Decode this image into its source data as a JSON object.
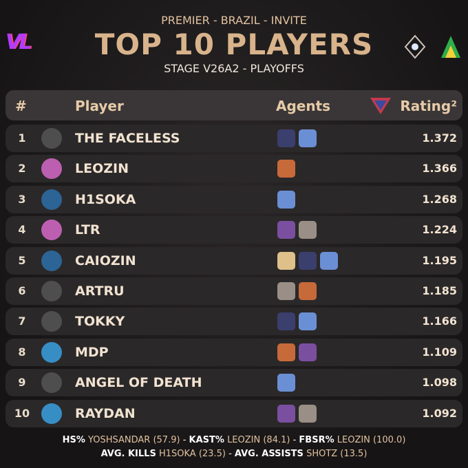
{
  "header": {
    "logo": "VL",
    "subtitle": "PREMIER - BRAZIL - INVITE",
    "title": "TOP 10 PLAYERS",
    "stage": "STAGE V26A2 - PLAYOFFS"
  },
  "table": {
    "columns": [
      "#",
      "Player",
      "Agents",
      "Rating²"
    ],
    "rows": [
      {
        "rank": 1,
        "player": "THE FACELESS",
        "rating": 1.372
      },
      {
        "rank": 2,
        "player": "LEOZIN",
        "rating": 1.366
      },
      {
        "rank": 3,
        "player": "H1SOKA",
        "rating": 1.268
      },
      {
        "rank": 4,
        "player": "LTR",
        "rating": 1.224
      },
      {
        "rank": 5,
        "player": "CAIOZIN",
        "rating": 1.195
      },
      {
        "rank": 6,
        "player": "ARTRU",
        "rating": 1.185
      },
      {
        "rank": 7,
        "player": "TOKKY",
        "rating": 1.166
      },
      {
        "rank": 8,
        "player": "MDP",
        "rating": 1.109
      },
      {
        "rank": 9,
        "player": "ANGEL OF DEATH",
        "rating": 1.098
      },
      {
        "rank": 10,
        "player": "RAYDAN",
        "rating": 1.092
      }
    ]
  },
  "footer": {
    "separator": "-",
    "lines": [
      [
        {
          "label": "HS%",
          "value": "YOSHSANDAR (57.9)"
        },
        {
          "label": "KAST%",
          "value": "LEOZIN (84.1)"
        },
        {
          "label": "FBSR%",
          "value": "LEOZIN (100.0)"
        }
      ],
      [
        {
          "label": "AVG. KILLS",
          "value": "H1SOKA (23.5)"
        },
        {
          "label": "AVG. ASSISTS",
          "value": "SHOTZ (13.5)"
        }
      ]
    ]
  }
}
